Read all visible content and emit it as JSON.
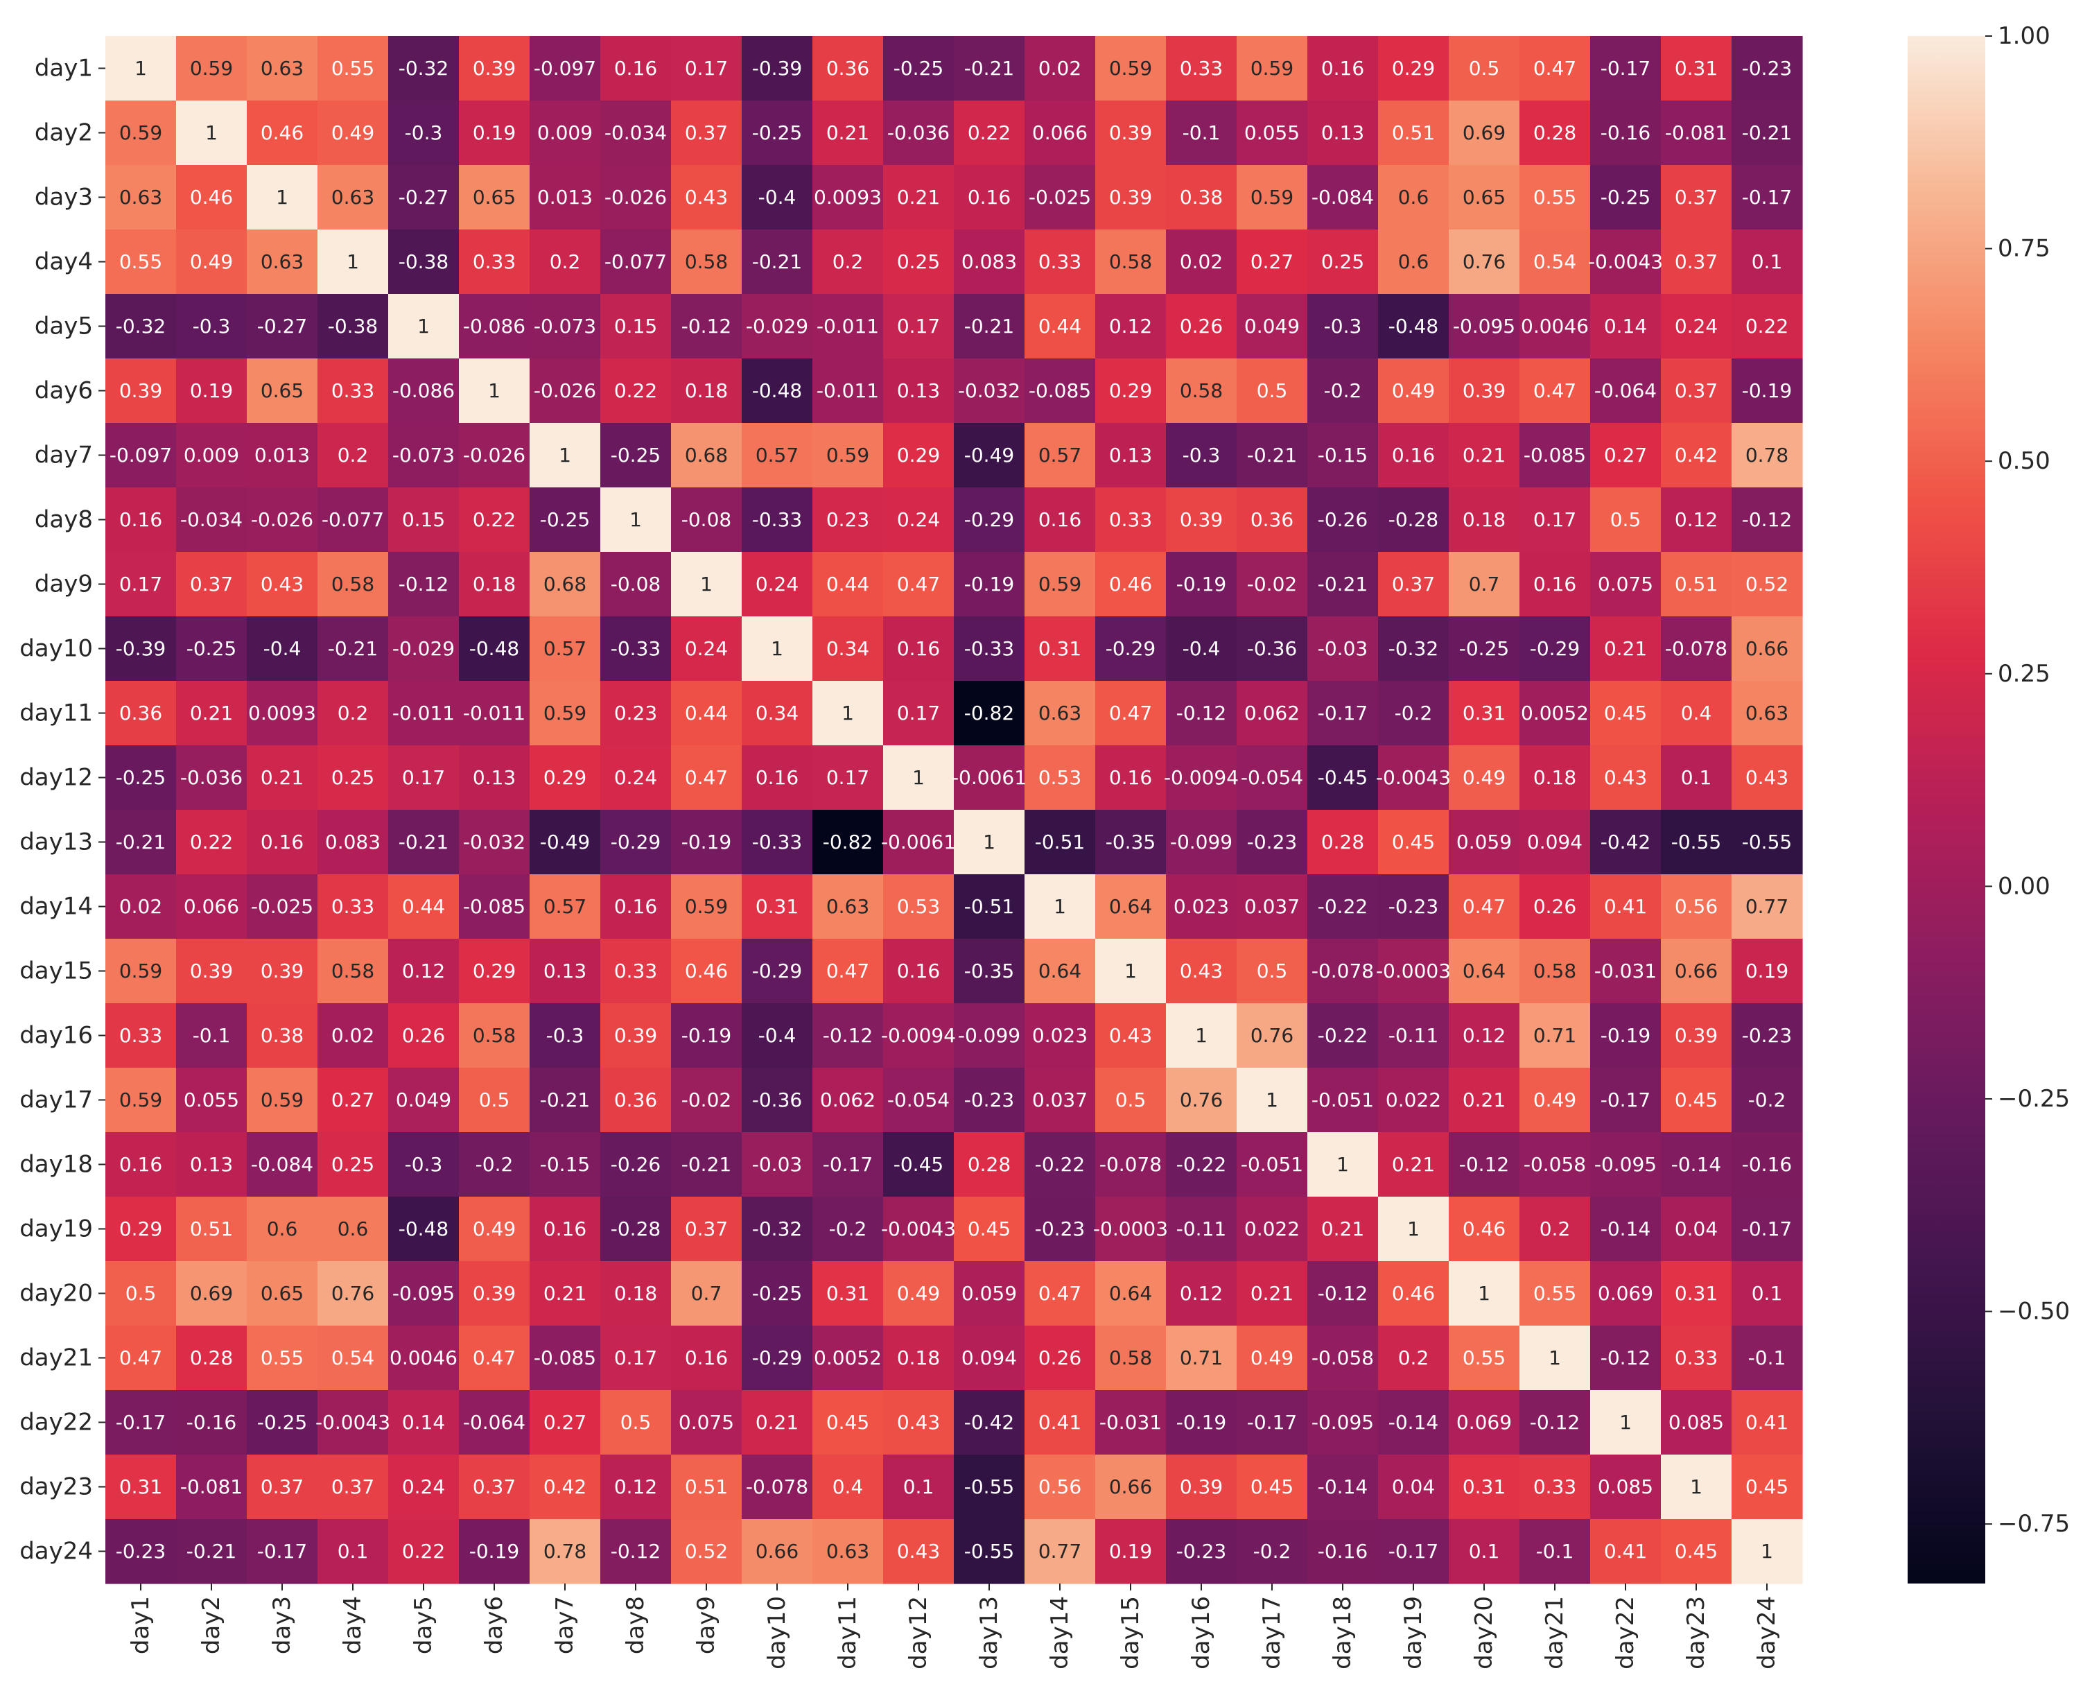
{
  "chart_data": {
    "type": "heatmap",
    "title": "",
    "xlabel": "",
    "ylabel": "",
    "colormap": "rocket",
    "value_range": [
      -0.82,
      1.0
    ],
    "annotated": true,
    "grid": false,
    "rows": [
      "day1",
      "day2",
      "day3",
      "day4",
      "day5",
      "day6",
      "day7",
      "day8",
      "day9",
      "day10",
      "day11",
      "day12",
      "day13",
      "day14",
      "day15",
      "day16",
      "day17",
      "day18",
      "day19",
      "day20",
      "day21",
      "day22",
      "day23",
      "day24"
    ],
    "columns": [
      "day1",
      "day2",
      "day3",
      "day4",
      "day5",
      "day6",
      "day7",
      "day8",
      "day9",
      "day10",
      "day11",
      "day12",
      "day13",
      "day14",
      "day15",
      "day16",
      "day17",
      "day18",
      "day19",
      "day20",
      "day21",
      "day22",
      "day23",
      "day24"
    ],
    "values": [
      [
        "1",
        "0.59",
        "0.63",
        "0.55",
        "-0.32",
        "0.39",
        "-0.097",
        "0.16",
        "0.17",
        "-0.39",
        "0.36",
        "-0.25",
        "-0.21",
        "0.02",
        "0.59",
        "0.33",
        "0.59",
        "0.16",
        "0.29",
        "0.5",
        "0.47",
        "-0.17",
        "0.31",
        "-0.23"
      ],
      [
        "0.59",
        "1",
        "0.46",
        "0.49",
        "-0.3",
        "0.19",
        "0.009",
        "-0.034",
        "0.37",
        "-0.25",
        "0.21",
        "-0.036",
        "0.22",
        "0.066",
        "0.39",
        "-0.1",
        "0.055",
        "0.13",
        "0.51",
        "0.69",
        "0.28",
        "-0.16",
        "-0.081",
        "-0.21"
      ],
      [
        "0.63",
        "0.46",
        "1",
        "0.63",
        "-0.27",
        "0.65",
        "0.013",
        "-0.026",
        "0.43",
        "-0.4",
        "0.0093",
        "0.21",
        "0.16",
        "-0.025",
        "0.39",
        "0.38",
        "0.59",
        "-0.084",
        "0.6",
        "0.65",
        "0.55",
        "-0.25",
        "0.37",
        "-0.17"
      ],
      [
        "0.55",
        "0.49",
        "0.63",
        "1",
        "-0.38",
        "0.33",
        "0.2",
        "-0.077",
        "0.58",
        "-0.21",
        "0.2",
        "0.25",
        "0.083",
        "0.33",
        "0.58",
        "0.02",
        "0.27",
        "0.25",
        "0.6",
        "0.76",
        "0.54",
        "-0.0043",
        "0.37",
        "0.1"
      ],
      [
        "-0.32",
        "-0.3",
        "-0.27",
        "-0.38",
        "1",
        "-0.086",
        "-0.073",
        "0.15",
        "-0.12",
        "-0.029",
        "-0.011",
        "0.17",
        "-0.21",
        "0.44",
        "0.12",
        "0.26",
        "0.049",
        "-0.3",
        "-0.48",
        "-0.095",
        "0.0046",
        "0.14",
        "0.24",
        "0.22"
      ],
      [
        "0.39",
        "0.19",
        "0.65",
        "0.33",
        "-0.086",
        "1",
        "-0.026",
        "0.22",
        "0.18",
        "-0.48",
        "-0.011",
        "0.13",
        "-0.032",
        "-0.085",
        "0.29",
        "0.58",
        "0.5",
        "-0.2",
        "0.49",
        "0.39",
        "0.47",
        "-0.064",
        "0.37",
        "-0.19"
      ],
      [
        "-0.097",
        "0.009",
        "0.013",
        "0.2",
        "-0.073",
        "-0.026",
        "1",
        "-0.25",
        "0.68",
        "0.57",
        "0.59",
        "0.29",
        "-0.49",
        "0.57",
        "0.13",
        "-0.3",
        "-0.21",
        "-0.15",
        "0.16",
        "0.21",
        "-0.085",
        "0.27",
        "0.42",
        "0.78"
      ],
      [
        "0.16",
        "-0.034",
        "-0.026",
        "-0.077",
        "0.15",
        "0.22",
        "-0.25",
        "1",
        "-0.08",
        "-0.33",
        "0.23",
        "0.24",
        "-0.29",
        "0.16",
        "0.33",
        "0.39",
        "0.36",
        "-0.26",
        "-0.28",
        "0.18",
        "0.17",
        "0.5",
        "0.12",
        "-0.12"
      ],
      [
        "0.17",
        "0.37",
        "0.43",
        "0.58",
        "-0.12",
        "0.18",
        "0.68",
        "-0.08",
        "1",
        "0.24",
        "0.44",
        "0.47",
        "-0.19",
        "0.59",
        "0.46",
        "-0.19",
        "-0.02",
        "-0.21",
        "0.37",
        "0.7",
        "0.16",
        "0.075",
        "0.51",
        "0.52"
      ],
      [
        "-0.39",
        "-0.25",
        "-0.4",
        "-0.21",
        "-0.029",
        "-0.48",
        "0.57",
        "-0.33",
        "0.24",
        "1",
        "0.34",
        "0.16",
        "-0.33",
        "0.31",
        "-0.29",
        "-0.4",
        "-0.36",
        "-0.03",
        "-0.32",
        "-0.25",
        "-0.29",
        "0.21",
        "-0.078",
        "0.66"
      ],
      [
        "0.36",
        "0.21",
        "0.0093",
        "0.2",
        "-0.011",
        "-0.011",
        "0.59",
        "0.23",
        "0.44",
        "0.34",
        "1",
        "0.17",
        "-0.82",
        "0.63",
        "0.47",
        "-0.12",
        "0.062",
        "-0.17",
        "-0.2",
        "0.31",
        "0.0052",
        "0.45",
        "0.4",
        "0.63"
      ],
      [
        "-0.25",
        "-0.036",
        "0.21",
        "0.25",
        "0.17",
        "0.13",
        "0.29",
        "0.24",
        "0.47",
        "0.16",
        "0.17",
        "1",
        "-0.0061",
        "0.53",
        "0.16",
        "-0.0094",
        "-0.054",
        "-0.45",
        "-0.0043",
        "0.49",
        "0.18",
        "0.43",
        "0.1",
        "0.43"
      ],
      [
        "-0.21",
        "0.22",
        "0.16",
        "0.083",
        "-0.21",
        "-0.032",
        "-0.49",
        "-0.29",
        "-0.19",
        "-0.33",
        "-0.82",
        "-0.0061",
        "1",
        "-0.51",
        "-0.35",
        "-0.099",
        "-0.23",
        "0.28",
        "0.45",
        "0.059",
        "0.094",
        "-0.42",
        "-0.55",
        "-0.55"
      ],
      [
        "0.02",
        "0.066",
        "-0.025",
        "0.33",
        "0.44",
        "-0.085",
        "0.57",
        "0.16",
        "0.59",
        "0.31",
        "0.63",
        "0.53",
        "-0.51",
        "1",
        "0.64",
        "0.023",
        "0.037",
        "-0.22",
        "-0.23",
        "0.47",
        "0.26",
        "0.41",
        "0.56",
        "0.77"
      ],
      [
        "0.59",
        "0.39",
        "0.39",
        "0.58",
        "0.12",
        "0.29",
        "0.13",
        "0.33",
        "0.46",
        "-0.29",
        "0.47",
        "0.16",
        "-0.35",
        "0.64",
        "1",
        "0.43",
        "0.5",
        "-0.078",
        "-0.0003",
        "0.64",
        "0.58",
        "-0.031",
        "0.66",
        "0.19"
      ],
      [
        "0.33",
        "-0.1",
        "0.38",
        "0.02",
        "0.26",
        "0.58",
        "-0.3",
        "0.39",
        "-0.19",
        "-0.4",
        "-0.12",
        "-0.0094",
        "-0.099",
        "0.023",
        "0.43",
        "1",
        "0.76",
        "-0.22",
        "-0.11",
        "0.12",
        "0.71",
        "-0.19",
        "0.39",
        "-0.23"
      ],
      [
        "0.59",
        "0.055",
        "0.59",
        "0.27",
        "0.049",
        "0.5",
        "-0.21",
        "0.36",
        "-0.02",
        "-0.36",
        "0.062",
        "-0.054",
        "-0.23",
        "0.037",
        "0.5",
        "0.76",
        "1",
        "-0.051",
        "0.022",
        "0.21",
        "0.49",
        "-0.17",
        "0.45",
        "-0.2"
      ],
      [
        "0.16",
        "0.13",
        "-0.084",
        "0.25",
        "-0.3",
        "-0.2",
        "-0.15",
        "-0.26",
        "-0.21",
        "-0.03",
        "-0.17",
        "-0.45",
        "0.28",
        "-0.22",
        "-0.078",
        "-0.22",
        "-0.051",
        "1",
        "0.21",
        "-0.12",
        "-0.058",
        "-0.095",
        "-0.14",
        "-0.16"
      ],
      [
        "0.29",
        "0.51",
        "0.6",
        "0.6",
        "-0.48",
        "0.49",
        "0.16",
        "-0.28",
        "0.37",
        "-0.32",
        "-0.2",
        "-0.0043",
        "0.45",
        "-0.23",
        "-0.0003",
        "-0.11",
        "0.022",
        "0.21",
        "1",
        "0.46",
        "0.2",
        "-0.14",
        "0.04",
        "-0.17"
      ],
      [
        "0.5",
        "0.69",
        "0.65",
        "0.76",
        "-0.095",
        "0.39",
        "0.21",
        "0.18",
        "0.7",
        "-0.25",
        "0.31",
        "0.49",
        "0.059",
        "0.47",
        "0.64",
        "0.12",
        "0.21",
        "-0.12",
        "0.46",
        "1",
        "0.55",
        "0.069",
        "0.31",
        "0.1"
      ],
      [
        "0.47",
        "0.28",
        "0.55",
        "0.54",
        "0.0046",
        "0.47",
        "-0.085",
        "0.17",
        "0.16",
        "-0.29",
        "0.0052",
        "0.18",
        "0.094",
        "0.26",
        "0.58",
        "0.71",
        "0.49",
        "-0.058",
        "0.2",
        "0.55",
        "1",
        "-0.12",
        "0.33",
        "-0.1"
      ],
      [
        "-0.17",
        "-0.16",
        "-0.25",
        "-0.0043",
        "0.14",
        "-0.064",
        "0.27",
        "0.5",
        "0.075",
        "0.21",
        "0.45",
        "0.43",
        "-0.42",
        "0.41",
        "-0.031",
        "-0.19",
        "-0.17",
        "-0.095",
        "-0.14",
        "0.069",
        "-0.12",
        "1",
        "0.085",
        "0.41"
      ],
      [
        "0.31",
        "-0.081",
        "0.37",
        "0.37",
        "0.24",
        "0.37",
        "0.42",
        "0.12",
        "0.51",
        "-0.078",
        "0.4",
        "0.1",
        "-0.55",
        "0.56",
        "0.66",
        "0.39",
        "0.45",
        "-0.14",
        "0.04",
        "0.31",
        "0.33",
        "0.085",
        "1",
        "0.45"
      ],
      [
        "-0.23",
        "-0.21",
        "-0.17",
        "0.1",
        "0.22",
        "-0.19",
        "0.78",
        "-0.12",
        "0.52",
        "0.66",
        "0.63",
        "0.43",
        "-0.55",
        "0.77",
        "0.19",
        "-0.23",
        "-0.2",
        "-0.16",
        "-0.17",
        "0.1",
        "-0.1",
        "0.41",
        "0.45",
        "1"
      ]
    ],
    "colorbar": {
      "ticks": [
        "1.00",
        "0.75",
        "0.50",
        "0.25",
        "0.00",
        "-0.25",
        "-0.50",
        "-0.75"
      ],
      "range": [
        -0.82,
        1.0
      ],
      "placement": "right"
    }
  }
}
